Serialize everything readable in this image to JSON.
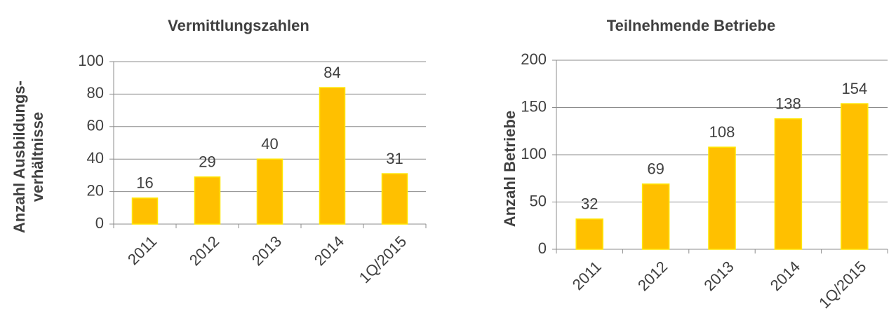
{
  "chart_data": [
    {
      "type": "bar",
      "title": "Vermittlungszahlen",
      "ylabel": [
        "Anzahl Ausbildungs-",
        "verhältnisse"
      ],
      "categories": [
        "2011",
        "2012",
        "2013",
        "2014",
        "1Q/2015"
      ],
      "values": [
        16,
        29,
        40,
        84,
        31
      ],
      "color": "#FFC000",
      "ylim": [
        0,
        100
      ],
      "yticks": [
        0,
        20,
        40,
        60,
        80,
        100
      ],
      "grid": true
    },
    {
      "type": "bar",
      "title": "Teilnehmende Betriebe",
      "ylabel": [
        "Anzahl Betriebe"
      ],
      "categories": [
        "2011",
        "2012",
        "2013",
        "2014",
        "1Q/2015"
      ],
      "values": [
        32,
        69,
        108,
        138,
        154
      ],
      "color": "#FFC000",
      "ylim": [
        0,
        200
      ],
      "yticks": [
        0,
        50,
        100,
        150,
        200
      ],
      "grid": true
    }
  ]
}
